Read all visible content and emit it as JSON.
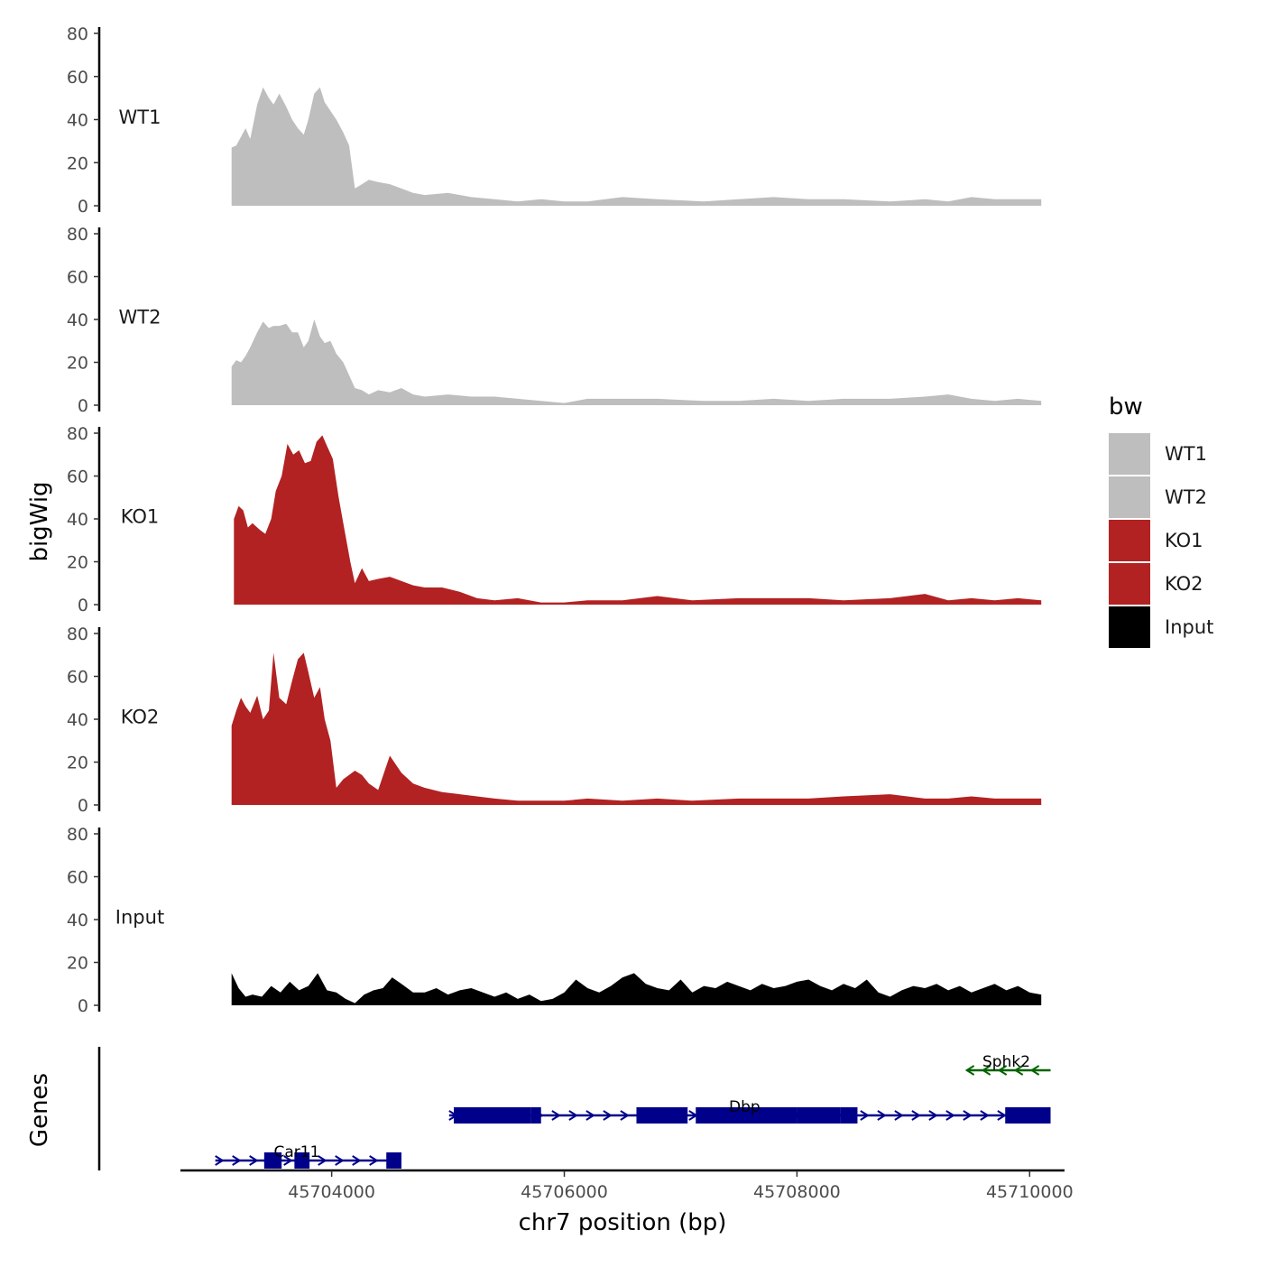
{
  "chart_data": {
    "type": "area",
    "xlabel": "chr7 position (bp)",
    "ylabel": "bigWig",
    "genes_label": "Genes",
    "xlim": [
      45702700,
      45710300
    ],
    "x_ticks": [
      45704000,
      45706000,
      45708000,
      45710000
    ],
    "x_tick_labels": [
      "45704000",
      "45706000",
      "45708000",
      "45710000"
    ],
    "ylim": [
      0,
      80
    ],
    "y_ticks": [
      0,
      20,
      40,
      60,
      80
    ],
    "y_tick_labels": [
      "0",
      "20",
      "40",
      "60",
      "80"
    ],
    "legend": {
      "title": "bw",
      "position": "right",
      "entries": [
        {
          "label": "WT1",
          "color": "#bebebe"
        },
        {
          "label": "WT2",
          "color": "#bebebe"
        },
        {
          "label": "KO1",
          "color": "#b22222"
        },
        {
          "label": "KO2",
          "color": "#b22222"
        },
        {
          "label": "Input",
          "color": "#000000"
        }
      ]
    },
    "tracks": [
      {
        "name": "WT1",
        "color": "#bebebe",
        "x": [
          45703140,
          45703180,
          45703220,
          45703260,
          45703300,
          45703360,
          45703410,
          45703460,
          45703500,
          45703550,
          45703610,
          45703660,
          45703710,
          45703760,
          45703800,
          45703850,
          45703900,
          45703940,
          45703990,
          45704040,
          45704100,
          45704150,
          45704200,
          45704260,
          45704320,
          45704400,
          45704500,
          45704600,
          45704700,
          45704800,
          45705000,
          45705200,
          45705400,
          45705600,
          45705800,
          45706000,
          45706200,
          45706500,
          45706800,
          45707200,
          45707500,
          45707800,
          45708100,
          45708400,
          45708800,
          45709100,
          45709300,
          45709500,
          45709700,
          45709900,
          45710100
        ],
        "y": [
          27,
          28,
          32,
          36,
          31,
          47,
          55,
          50,
          47,
          52,
          46,
          40,
          36,
          33,
          40,
          52,
          55,
          48,
          44,
          40,
          34,
          28,
          8,
          10,
          12,
          11,
          10,
          8,
          6,
          5,
          6,
          4,
          3,
          2,
          3,
          2,
          2,
          4,
          3,
          2,
          3,
          4,
          3,
          3,
          2,
          3,
          2,
          4,
          3,
          3,
          3
        ]
      },
      {
        "name": "WT2",
        "color": "#bebebe",
        "x": [
          45703140,
          45703180,
          45703220,
          45703260,
          45703300,
          45703360,
          45703410,
          45703460,
          45703500,
          45703550,
          45703610,
          45703660,
          45703710,
          45703760,
          45703800,
          45703850,
          45703900,
          45703940,
          45703990,
          45704040,
          45704100,
          45704150,
          45704200,
          45704260,
          45704320,
          45704400,
          45704500,
          45704600,
          45704700,
          45704800,
          45705000,
          45705200,
          45705400,
          45705600,
          45705800,
          45706000,
          45706200,
          45706500,
          45706800,
          45707200,
          45707500,
          45707800,
          45708100,
          45708400,
          45708800,
          45709100,
          45709300,
          45709500,
          45709700,
          45709900,
          45710100
        ],
        "y": [
          18,
          21,
          20,
          23,
          27,
          34,
          39,
          36,
          37,
          37,
          38,
          34,
          34,
          27,
          30,
          40,
          32,
          29,
          30,
          24,
          20,
          14,
          8,
          7,
          5,
          7,
          6,
          8,
          5,
          4,
          5,
          4,
          4,
          3,
          2,
          1,
          3,
          3,
          3,
          2,
          2,
          3,
          2,
          3,
          3,
          4,
          5,
          3,
          2,
          3,
          2
        ]
      },
      {
        "name": "KO1",
        "color": "#b22222",
        "x": [
          45703160,
          45703200,
          45703240,
          45703280,
          45703320,
          45703380,
          45703430,
          45703480,
          45703520,
          45703570,
          45703620,
          45703670,
          45703720,
          45703770,
          45703820,
          45703870,
          45703920,
          45703960,
          45704010,
          45704060,
          45704110,
          45704160,
          45704200,
          45704260,
          45704320,
          45704400,
          45704500,
          45704600,
          45704700,
          45704800,
          45704950,
          45705100,
          45705250,
          45705400,
          45705600,
          45705800,
          45706000,
          45706200,
          45706500,
          45706800,
          45707100,
          45707500,
          45707800,
          45708100,
          45708400,
          45708800,
          45709100,
          45709300,
          45709500,
          45709700,
          45709900,
          45710100
        ],
        "y": [
          40,
          46,
          44,
          36,
          38,
          35,
          33,
          40,
          53,
          60,
          75,
          70,
          72,
          66,
          67,
          76,
          79,
          74,
          68,
          50,
          35,
          20,
          10,
          17,
          11,
          12,
          13,
          11,
          9,
          8,
          8,
          6,
          3,
          2,
          3,
          1,
          1,
          2,
          2,
          4,
          2,
          3,
          3,
          3,
          2,
          3,
          5,
          2,
          3,
          2,
          3,
          2
        ]
      },
      {
        "name": "KO2",
        "color": "#b22222",
        "x": [
          45703140,
          45703180,
          45703220,
          45703260,
          45703300,
          45703360,
          45703410,
          45703460,
          45703500,
          45703550,
          45703610,
          45703660,
          45703710,
          45703760,
          45703800,
          45703850,
          45703900,
          45703940,
          45703990,
          45704040,
          45704100,
          45704150,
          45704200,
          45704260,
          45704320,
          45704400,
          45704500,
          45704600,
          45704700,
          45704800,
          45704950,
          45705100,
          45705250,
          45705400,
          45705600,
          45705800,
          45706000,
          45706200,
          45706500,
          45706800,
          45707100,
          45707500,
          45707800,
          45708100,
          45708400,
          45708800,
          45709100,
          45709300,
          45709500,
          45709700,
          45709900,
          45710100
        ],
        "y": [
          37,
          44,
          50,
          46,
          43,
          51,
          40,
          44,
          71,
          50,
          47,
          58,
          68,
          71,
          62,
          50,
          55,
          40,
          30,
          8,
          12,
          14,
          16,
          14,
          10,
          7,
          23,
          15,
          10,
          8,
          6,
          5,
          4,
          3,
          2,
          2,
          2,
          3,
          2,
          3,
          2,
          3,
          3,
          3,
          4,
          5,
          3,
          3,
          4,
          3,
          3,
          3
        ]
      },
      {
        "name": "Input",
        "color": "#000000",
        "x": [
          45703140,
          45703200,
          45703260,
          45703320,
          45703400,
          45703480,
          45703560,
          45703640,
          45703720,
          45703800,
          45703880,
          45703960,
          45704040,
          45704120,
          45704200,
          45704280,
          45704360,
          45704440,
          45704520,
          45704600,
          45704700,
          45704800,
          45704900,
          45705000,
          45705100,
          45705200,
          45705300,
          45705400,
          45705500,
          45705600,
          45705700,
          45705800,
          45705900,
          45706000,
          45706100,
          45706200,
          45706300,
          45706400,
          45706500,
          45706600,
          45706700,
          45706800,
          45706900,
          45707000,
          45707100,
          45707200,
          45707300,
          45707400,
          45707500,
          45707600,
          45707700,
          45707800,
          45707900,
          45708000,
          45708100,
          45708200,
          45708300,
          45708400,
          45708500,
          45708600,
          45708700,
          45708800,
          45708900,
          45709000,
          45709100,
          45709200,
          45709300,
          45709400,
          45709500,
          45709600,
          45709700,
          45709800,
          45709900,
          45710000,
          45710100
        ],
        "y": [
          15,
          8,
          4,
          5,
          4,
          9,
          6,
          11,
          7,
          9,
          15,
          7,
          6,
          3,
          1,
          5,
          7,
          8,
          13,
          10,
          6,
          6,
          8,
          5,
          7,
          8,
          6,
          4,
          6,
          3,
          5,
          2,
          3,
          6,
          12,
          8,
          6,
          9,
          13,
          15,
          10,
          8,
          7,
          12,
          6,
          9,
          8,
          11,
          9,
          7,
          10,
          8,
          9,
          11,
          12,
          9,
          7,
          10,
          8,
          12,
          6,
          4,
          7,
          9,
          8,
          10,
          7,
          9,
          6,
          8,
          10,
          7,
          9,
          6,
          5
        ]
      }
    ],
    "genes": [
      {
        "name": "Car11",
        "strand": "+",
        "color": "#00008b",
        "row": 0,
        "start": 45703000,
        "end": 45704600,
        "exons": [
          [
            45703420,
            45703570
          ],
          [
            45703680,
            45703810
          ],
          [
            45704470,
            45704600
          ]
        ],
        "label_x": 45703700
      },
      {
        "name": "Dbp",
        "strand": "+",
        "color": "#00008b",
        "row": 1,
        "start": 45705010,
        "end": 45710180,
        "exons": [
          [
            45705050,
            45705710
          ],
          [
            45705710,
            45705800
          ],
          [
            45706620,
            45707060
          ],
          [
            45707130,
            45708000
          ],
          [
            45708000,
            45708370
          ],
          [
            45708370,
            45708520
          ],
          [
            45709790,
            45710180
          ]
        ],
        "label_x": 45707550
      },
      {
        "name": "Sphk2",
        "strand": "-",
        "color": "#006400",
        "row": 2,
        "start": 45709460,
        "end": 45710180,
        "exons": [],
        "label_x": 45709800
      }
    ]
  }
}
